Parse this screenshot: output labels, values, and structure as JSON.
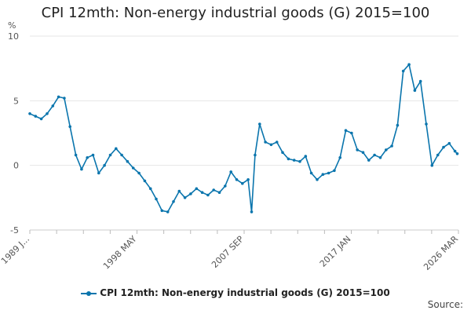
{
  "chart_data": {
    "type": "line",
    "title": "CPI 12mth: Non-energy industrial goods (G) 2015=100",
    "unit_label": "%",
    "ylim": [
      -5,
      10
    ],
    "y_ticks": [
      10,
      5,
      0,
      -5
    ],
    "x_tick_labels": [
      "1989 J...",
      "1998 MAY",
      "2007 SEP",
      "2017 JAN",
      "2026 MAR"
    ],
    "grid": "horizontal",
    "legend_position": "bottom",
    "source_label": "Source:",
    "colors": {
      "series": "#0a75ad",
      "grid": "#e6e6e6"
    },
    "series": [
      {
        "name": "CPI 12mth: Non-energy industrial goods (G) 2015=100",
        "x": [
          1989.0,
          1989.5,
          1990.0,
          1990.5,
          1991.0,
          1991.5,
          1992.0,
          1992.5,
          1993.0,
          1993.5,
          1994.0,
          1994.5,
          1995.0,
          1995.5,
          1996.0,
          1996.5,
          1997.0,
          1997.5,
          1998.0,
          1998.5,
          1999.0,
          1999.5,
          2000.0,
          2000.5,
          2001.0,
          2001.5,
          2002.0,
          2002.5,
          2003.0,
          2003.5,
          2004.0,
          2004.5,
          2005.0,
          2005.5,
          2006.0,
          2006.5,
          2007.0,
          2007.5,
          2008.0,
          2008.3,
          2008.6,
          2009.0,
          2009.5,
          2010.0,
          2010.5,
          2011.0,
          2011.5,
          2012.0,
          2012.5,
          2013.0,
          2013.5,
          2014.0,
          2014.5,
          2015.0,
          2015.5,
          2016.0,
          2016.5,
          2017.0,
          2017.5,
          2018.0,
          2018.5,
          2019.0,
          2019.5,
          2020.0,
          2020.5,
          2021.0,
          2021.5,
          2022.0,
          2022.5,
          2023.0,
          2023.5,
          2024.0,
          2024.5,
          2025.0,
          2025.5,
          2026.0,
          2026.2
        ],
        "values": [
          4.0,
          3.8,
          3.6,
          4.0,
          4.6,
          5.3,
          5.2,
          3.0,
          0.8,
          -0.3,
          0.6,
          0.8,
          -0.6,
          0.0,
          0.8,
          1.3,
          0.8,
          0.3,
          -0.2,
          -0.6,
          -1.2,
          -1.8,
          -2.6,
          -3.5,
          -3.6,
          -2.8,
          -2.0,
          -2.5,
          -2.2,
          -1.8,
          -2.1,
          -2.3,
          -1.9,
          -2.1,
          -1.6,
          -0.5,
          -1.1,
          -1.4,
          -1.1,
          -3.6,
          0.8,
          3.2,
          1.8,
          1.6,
          1.8,
          1.0,
          0.5,
          0.4,
          0.3,
          0.7,
          -0.6,
          -1.1,
          -0.7,
          -0.6,
          -0.4,
          0.6,
          2.7,
          2.5,
          1.2,
          1.0,
          0.4,
          0.8,
          0.6,
          1.2,
          1.5,
          3.1,
          7.3,
          7.8,
          5.8,
          6.5,
          3.2,
          0.0,
          0.8,
          1.4,
          1.7,
          1.1,
          0.9
        ]
      }
    ]
  }
}
